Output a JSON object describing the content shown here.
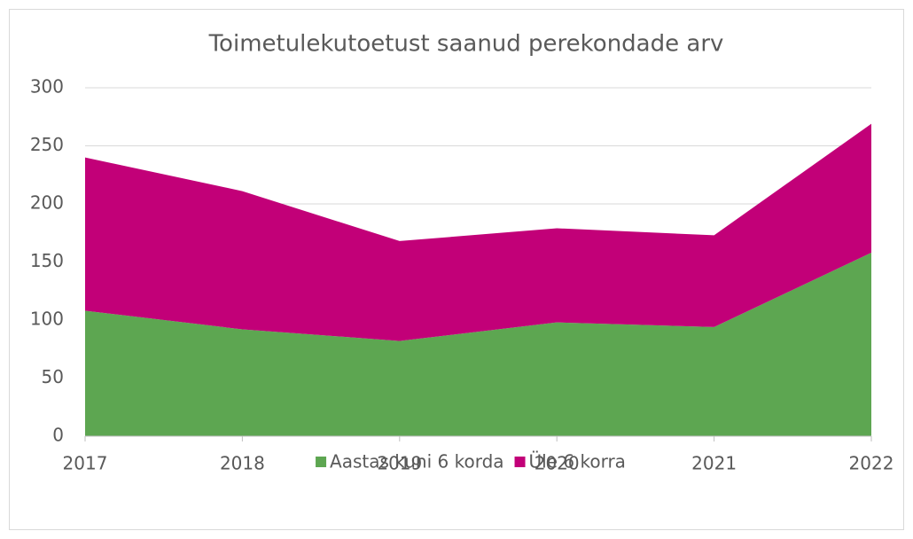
{
  "chart_data": {
    "type": "area",
    "stacked": true,
    "title": "Toimetulekutoetust saanud perekondade arv",
    "categories": [
      "2017",
      "2018",
      "2019",
      "2020",
      "2021",
      "2022"
    ],
    "series": [
      {
        "name": "Aastas kuni 6 korda",
        "color": "#5da651",
        "values": [
          108,
          92,
          82,
          98,
          94,
          158
        ]
      },
      {
        "name": "Üle 6 korra",
        "color": "#c20078",
        "values": [
          132,
          119,
          86,
          81,
          79,
          111
        ]
      }
    ],
    "ylim": [
      0,
      300
    ],
    "yticks": [
      0,
      50,
      100,
      150,
      200,
      250,
      300
    ],
    "grid": true,
    "legend": "bottom"
  }
}
